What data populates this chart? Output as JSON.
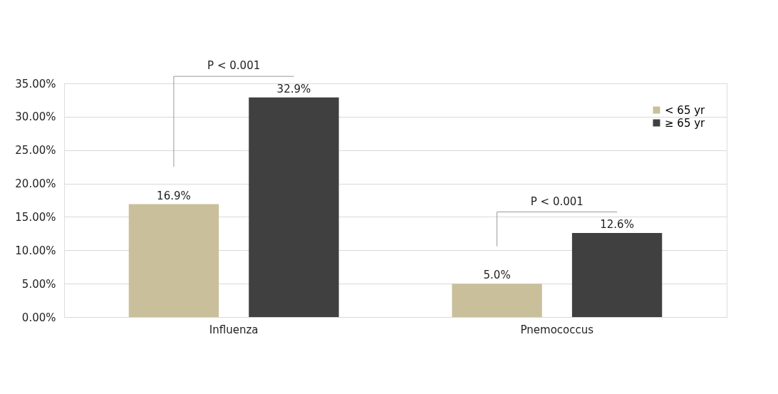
{
  "chart_data": {
    "type": "bar",
    "categories": [
      "Influenza",
      "Pnemococcus"
    ],
    "series": [
      {
        "name": "< 65 yr",
        "color": "#c9c09b",
        "values": [
          16.9,
          5.0
        ],
        "value_labels": [
          "16.9%",
          "5.0%"
        ]
      },
      {
        "name": "≥ 65 yr",
        "color": "#404040",
        "values": [
          32.9,
          12.6
        ],
        "value_labels": [
          "32.9%",
          "12.6%"
        ]
      }
    ],
    "ylim": [
      0,
      35
    ],
    "yticks": [
      {
        "value": 0,
        "label": "0.00%"
      },
      {
        "value": 5,
        "label": "5.00%"
      },
      {
        "value": 10,
        "label": "10.00%"
      },
      {
        "value": 15,
        "label": "15.00%"
      },
      {
        "value": 20,
        "label": "20.00%"
      },
      {
        "value": 25,
        "label": "25.00%"
      },
      {
        "value": 30,
        "label": "30.00%"
      },
      {
        "value": 35,
        "label": "35.00%"
      }
    ],
    "grid": "y",
    "legend": "top right",
    "annotations": [
      "P < 0.001",
      "P < 0.001"
    ]
  }
}
